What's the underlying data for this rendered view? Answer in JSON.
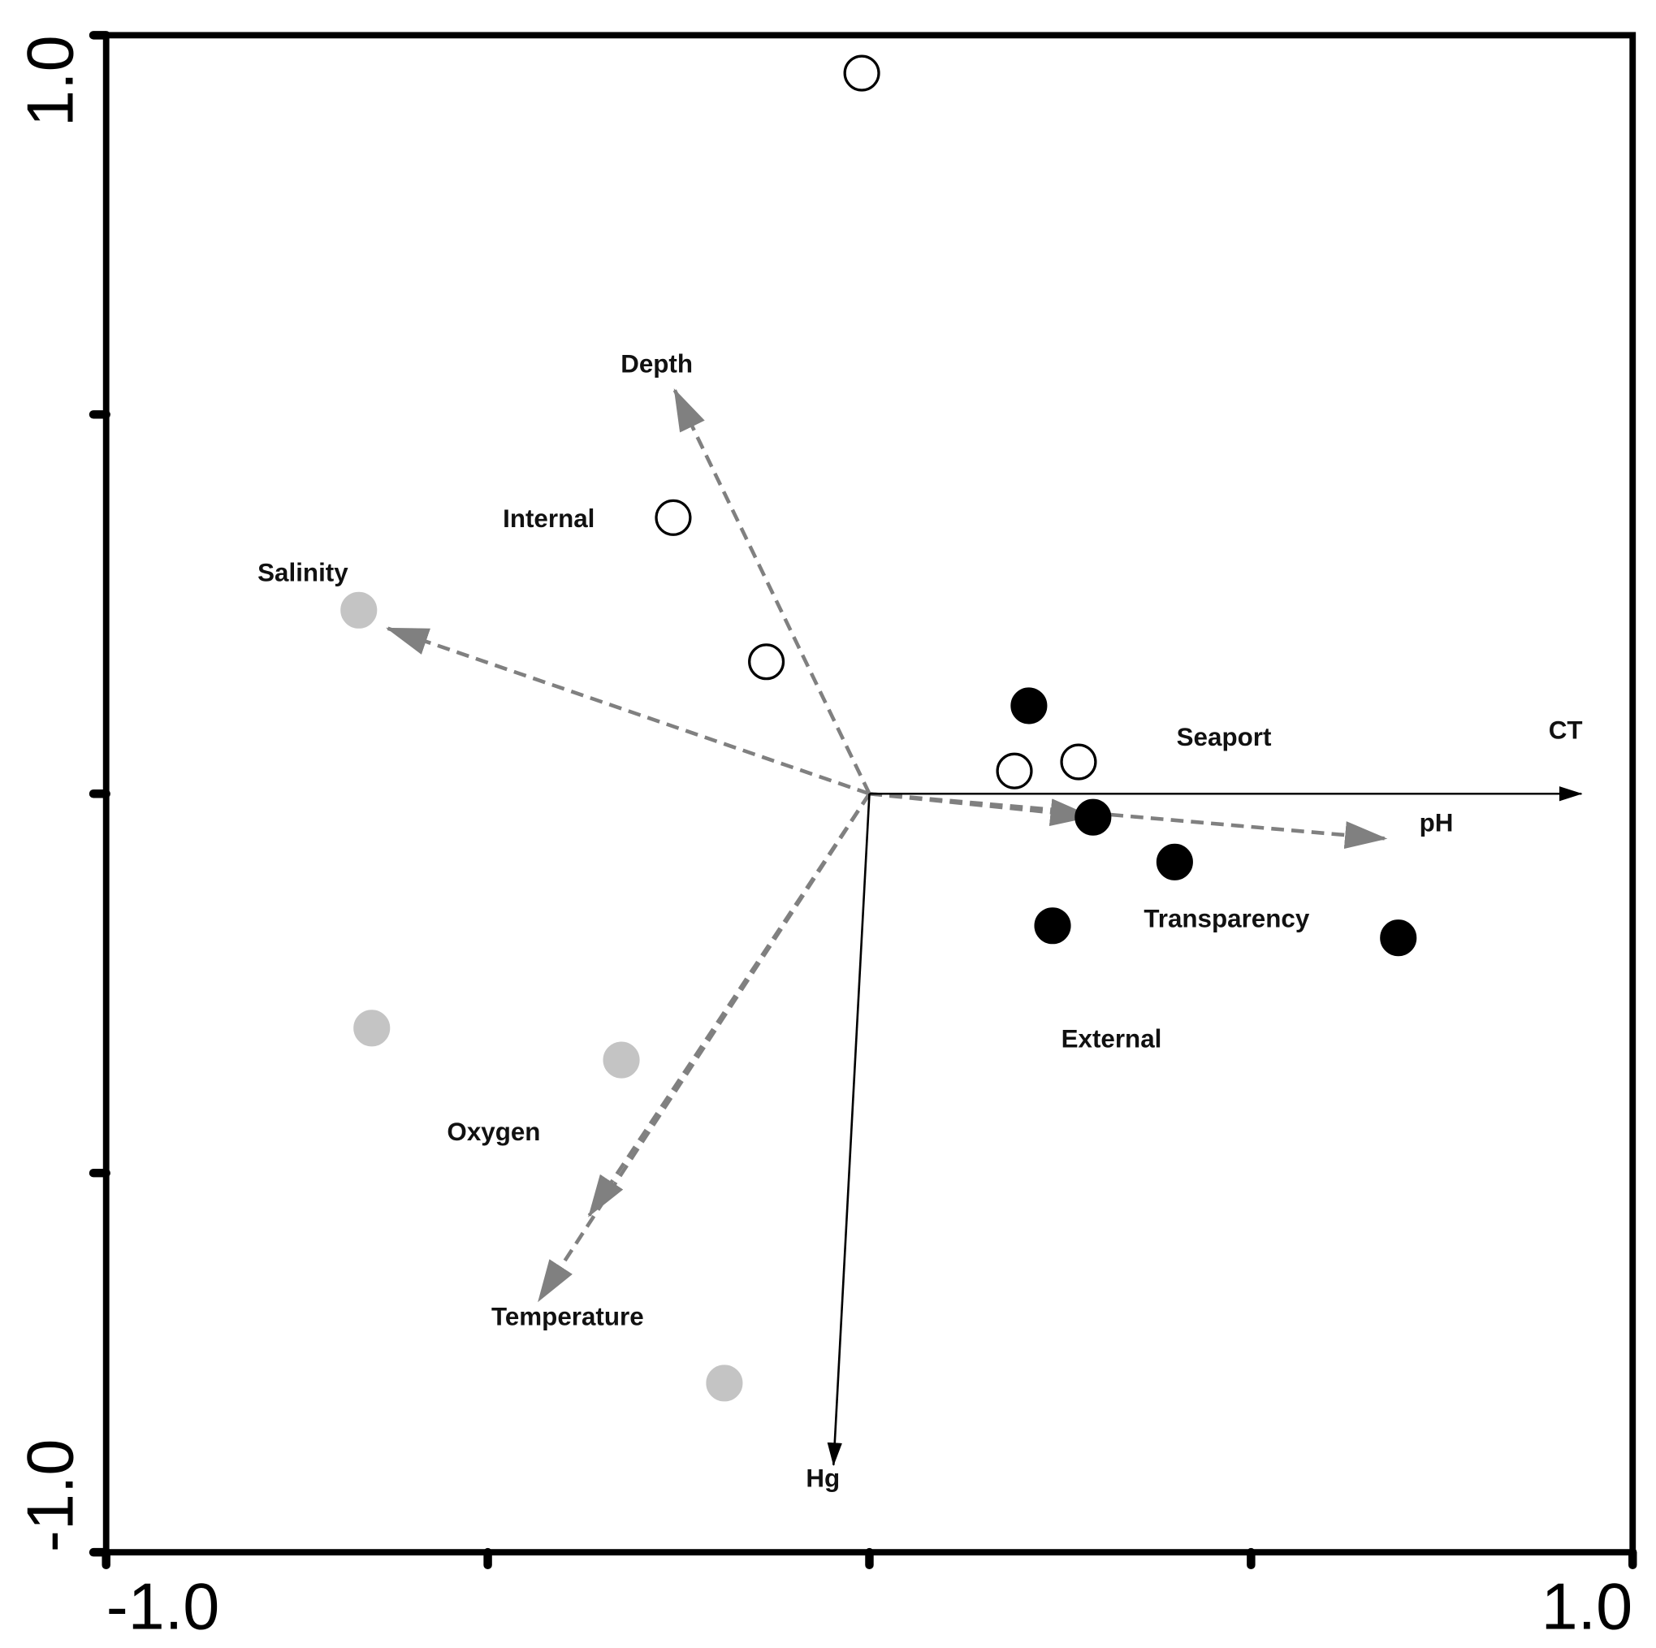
{
  "chart_data": {
    "type": "biplot",
    "xlim": [
      -1,
      1
    ],
    "ylim": [
      -1,
      1
    ],
    "xticks": [
      {
        "value": -1,
        "label": "-1.0"
      },
      {
        "value": 1,
        "label": "1.0"
      }
    ],
    "yticks": [
      {
        "value": -1,
        "label": "-1.0"
      },
      {
        "value": 1,
        "label": "1.0"
      }
    ],
    "x_minor_ticks": [
      -0.5,
      0,
      0.5
    ],
    "y_minor_ticks": [
      -0.5,
      0,
      0.5
    ],
    "series": [
      {
        "color": "#ffffff",
        "edge_color": "#000000",
        "x": [
          -0.01,
          -0.257,
          -0.135,
          0.19,
          0.274
        ],
        "y": [
          0.95,
          0.364,
          0.174,
          0.03,
          0.042
        ]
      },
      {
        "color": "#000000",
        "edge_color": "#000000",
        "x": [
          0.209,
          0.293,
          0.4,
          0.24,
          0.693
        ],
        "y": [
          0.116,
          -0.031,
          -0.09,
          -0.174,
          -0.19
        ]
      },
      {
        "color": "#c4c4c4",
        "edge_color": "#c4c4c4",
        "x": [
          -0.669,
          -0.652,
          -0.325,
          -0.19
        ],
        "y": [
          0.242,
          -0.309,
          -0.351,
          -0.777
        ]
      }
    ],
    "group_labels": [
      "Internal",
      "Seaport",
      "External"
    ],
    "vectors": [
      {
        "label": "Depth",
        "x": -0.255,
        "y": 0.532,
        "style": "dashed",
        "color": "#808080"
      },
      {
        "label": "Salinity",
        "x": -0.631,
        "y": 0.218,
        "style": "dashed",
        "color": "#808080"
      },
      {
        "label": "Oxygen",
        "x": -0.367,
        "y": -0.556,
        "style": "dashed",
        "color": "#808080"
      },
      {
        "label": "Temperature",
        "x": -0.433,
        "y": -0.668,
        "style": "dashed",
        "color": "#808080"
      },
      {
        "label": "Transparency",
        "x": 0.29,
        "y": -0.03,
        "style": "dashed",
        "color": "#808080"
      },
      {
        "label": "pH",
        "x": 0.676,
        "y": -0.059,
        "style": "dashed",
        "color": "#808080"
      },
      {
        "label": "CT",
        "x": 0.933,
        "y": 0.0,
        "style": "solid",
        "color": "#000000"
      },
      {
        "label": "Hg",
        "x": -0.047,
        "y": -0.885,
        "style": "solid",
        "color": "#000000"
      }
    ]
  }
}
